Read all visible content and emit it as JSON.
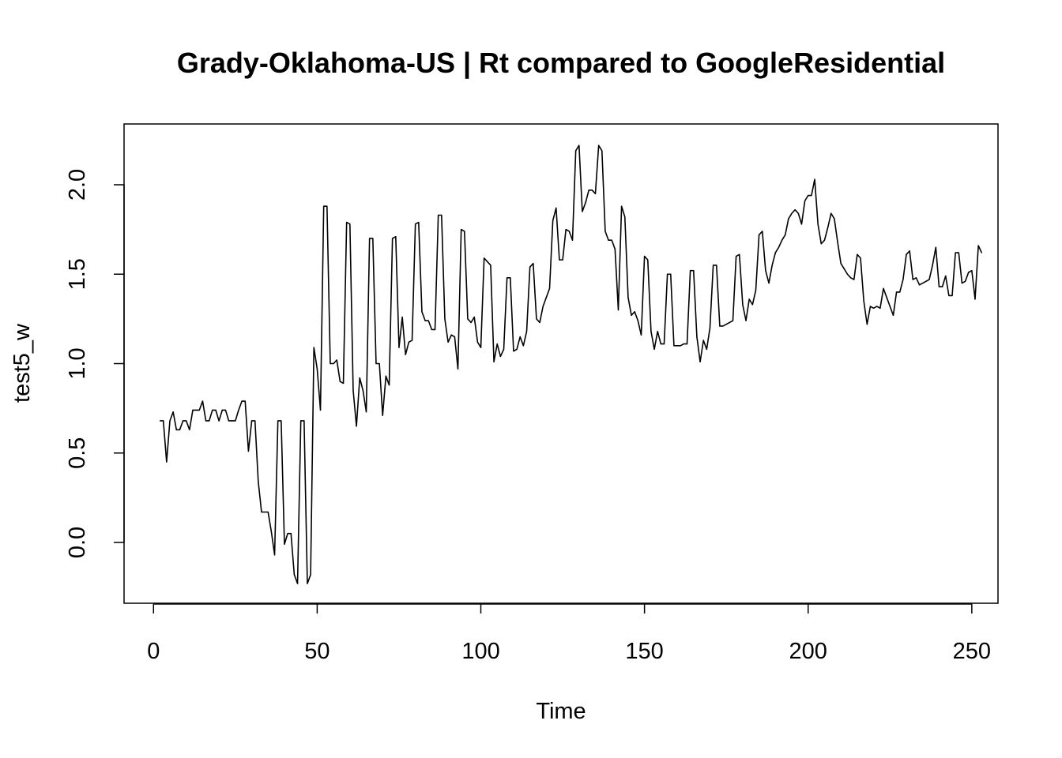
{
  "chart_data": {
    "type": "line",
    "title": "Grady-Oklahoma-US | Rt compared to GoogleResidential",
    "xlabel": "Time",
    "ylabel": "test5_w",
    "xlim": [
      -9,
      258
    ],
    "ylim": [
      -0.34,
      2.34
    ],
    "x_ticks": [
      0,
      50,
      100,
      150,
      200,
      250
    ],
    "x_tick_labels": [
      "0",
      "50",
      "100",
      "150",
      "200",
      "250"
    ],
    "y_ticks": [
      0.0,
      0.5,
      1.0,
      1.5,
      2.0
    ],
    "y_tick_labels": [
      "0.0",
      "0.5",
      "1.0",
      "1.5",
      "2.0"
    ],
    "grid": false,
    "line_color": "#000000",
    "series": [
      {
        "name": "test5_w",
        "x_start": 2,
        "values": [
          0.68,
          0.68,
          0.45,
          0.68,
          0.73,
          0.63,
          0.63,
          0.68,
          0.68,
          0.63,
          0.74,
          0.74,
          0.74,
          0.79,
          0.68,
          0.68,
          0.74,
          0.74,
          0.68,
          0.74,
          0.74,
          0.68,
          0.68,
          0.68,
          0.74,
          0.79,
          0.79,
          0.51,
          0.68,
          0.68,
          0.34,
          0.17,
          0.17,
          0.17,
          0.06,
          -0.07,
          0.68,
          0.68,
          -0.01,
          0.05,
          0.05,
          -0.18,
          -0.23,
          0.68,
          0.68,
          -0.23,
          -0.18,
          1.09,
          0.97,
          0.74,
          1.88,
          1.88,
          1.0,
          1.0,
          1.02,
          0.9,
          0.89,
          1.79,
          1.78,
          0.85,
          0.65,
          0.92,
          0.85,
          0.73,
          1.7,
          1.7,
          1.0,
          1.0,
          0.71,
          0.93,
          0.88,
          1.7,
          1.71,
          1.09,
          1.26,
          1.05,
          1.12,
          1.13,
          1.78,
          1.79,
          1.29,
          1.24,
          1.24,
          1.19,
          1.19,
          1.83,
          1.83,
          1.25,
          1.12,
          1.16,
          1.15,
          0.97,
          1.75,
          1.74,
          1.25,
          1.23,
          1.26,
          1.12,
          1.09,
          1.59,
          1.57,
          1.55,
          1.01,
          1.11,
          1.04,
          1.08,
          1.48,
          1.48,
          1.07,
          1.08,
          1.15,
          1.1,
          1.18,
          1.54,
          1.56,
          1.25,
          1.23,
          1.32,
          1.37,
          1.42,
          1.8,
          1.87,
          1.58,
          1.58,
          1.75,
          1.74,
          1.69,
          2.19,
          2.22,
          1.85,
          1.9,
          1.97,
          1.97,
          1.95,
          2.22,
          2.19,
          1.74,
          1.69,
          1.69,
          1.64,
          1.3,
          1.88,
          1.82,
          1.37,
          1.27,
          1.29,
          1.24,
          1.16,
          1.6,
          1.58,
          1.18,
          1.08,
          1.18,
          1.11,
          1.11,
          1.5,
          1.5,
          1.1,
          1.1,
          1.1,
          1.11,
          1.11,
          1.52,
          1.52,
          1.15,
          1.01,
          1.13,
          1.08,
          1.2,
          1.55,
          1.55,
          1.21,
          1.21,
          1.22,
          1.23,
          1.24,
          1.6,
          1.61,
          1.33,
          1.24,
          1.36,
          1.33,
          1.41,
          1.72,
          1.74,
          1.52,
          1.45,
          1.55,
          1.62,
          1.65,
          1.69,
          1.72,
          1.81,
          1.84,
          1.86,
          1.84,
          1.78,
          1.91,
          1.94,
          1.94,
          2.03,
          1.78,
          1.67,
          1.69,
          1.76,
          1.84,
          1.81,
          1.68,
          1.56,
          1.53,
          1.5,
          1.48,
          1.47,
          1.61,
          1.59,
          1.35,
          1.22,
          1.32,
          1.31,
          1.32,
          1.31,
          1.42,
          1.37,
          1.32,
          1.27,
          1.4,
          1.4,
          1.47,
          1.61,
          1.63,
          1.47,
          1.48,
          1.44,
          1.45,
          1.46,
          1.47,
          1.55,
          1.65,
          1.43,
          1.43,
          1.49,
          1.38,
          1.38,
          1.62,
          1.62,
          1.45,
          1.46,
          1.51,
          1.52,
          1.36,
          1.66,
          1.62
        ]
      }
    ]
  }
}
